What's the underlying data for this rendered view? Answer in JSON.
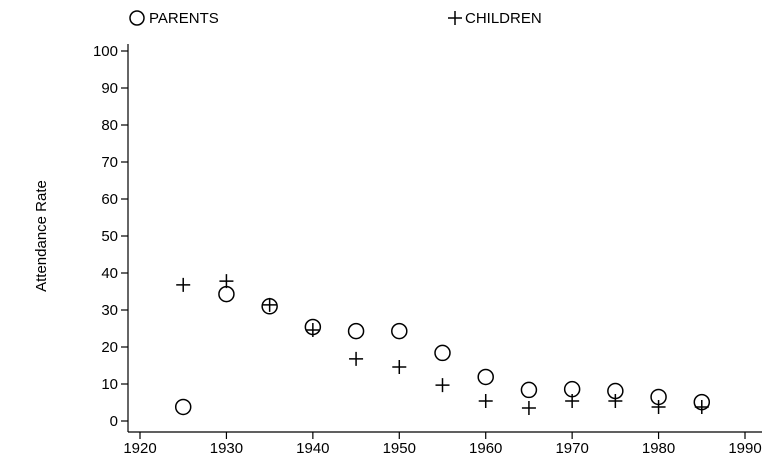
{
  "chart_data": {
    "type": "scatter",
    "y_label": "Attendance Rate",
    "x": [
      1925,
      1930,
      1935,
      1940,
      1945,
      1950,
      1955,
      1960,
      1965,
      1970,
      1975,
      1980,
      1985
    ],
    "series": [
      {
        "name": "PARENTS",
        "color": "#000000",
        "marker": "circle",
        "values": [
          3.8,
          34.3,
          31,
          25.4,
          24.3,
          24.3,
          18.4,
          11.9,
          8.4,
          8.6,
          8.1,
          6.5,
          5.1
        ]
      },
      {
        "name": "CHILDREN",
        "color": "#000000",
        "marker": "plus",
        "values": [
          36.8,
          37.8,
          31.4,
          24.6,
          16.8,
          14.6,
          9.7,
          5.4,
          3.5,
          5.4,
          5.4,
          3.8,
          3.8
        ]
      }
    ],
    "xlim": [
      1920,
      1990
    ],
    "xticks": [
      1920,
      1930,
      1940,
      1950,
      1960,
      1970,
      1980,
      1990
    ],
    "ylim": [
      0,
      100
    ],
    "yticks": [
      0,
      10,
      20,
      30,
      40,
      50,
      60,
      70,
      80,
      90,
      100
    ],
    "grid": false,
    "legend": "top"
  }
}
